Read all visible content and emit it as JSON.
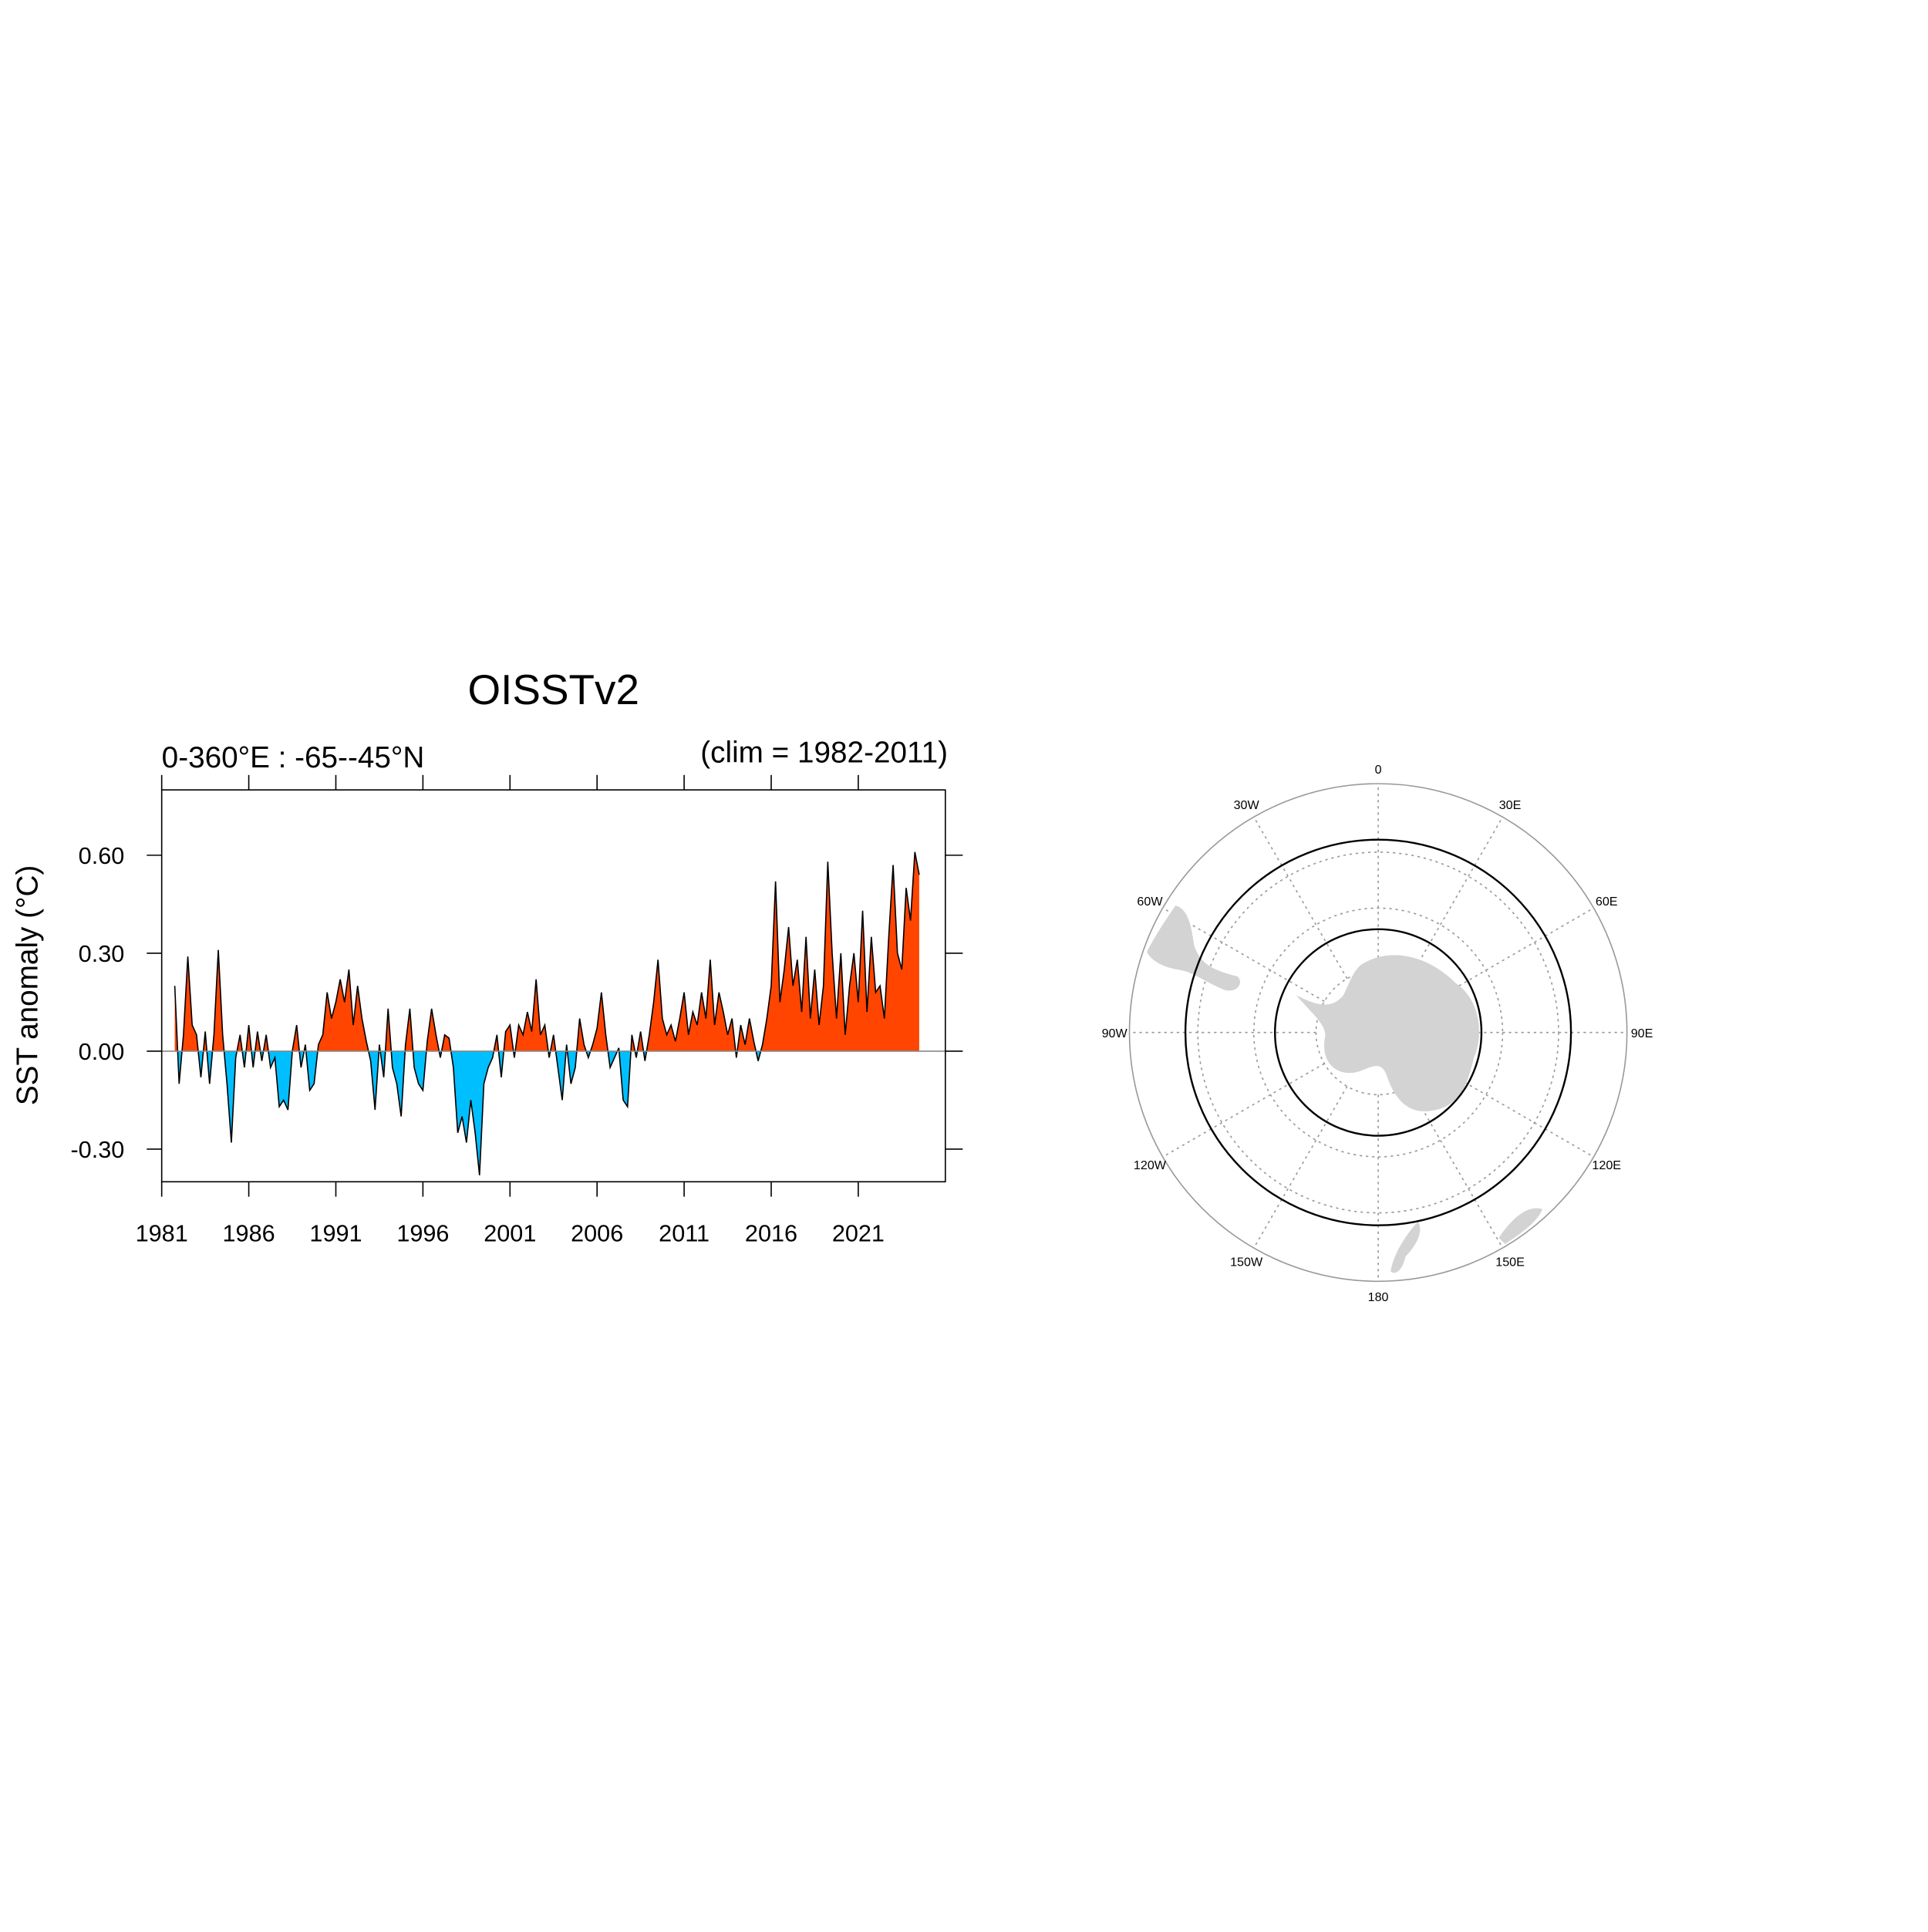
{
  "chart_data": {
    "type": "area",
    "title": "OISSTv2",
    "subtitle_left": "0-360°E : -65--45°N",
    "subtitle_right": "(clim = 1982-2011)",
    "y_label": "SST anomaly (°C)",
    "xlim": [
      1981,
      2026
    ],
    "xticks": [
      1981,
      1986,
      1991,
      1996,
      2001,
      2006,
      2011,
      2016,
      2021
    ],
    "ylim": [
      -0.4,
      0.8
    ],
    "yticks": [
      {
        "value": -0.3,
        "label": "-0.30"
      },
      {
        "value": 0,
        "label": "0.00"
      },
      {
        "value": 0.3,
        "label": "0.30"
      },
      {
        "value": 0.6,
        "label": "0.60"
      }
    ],
    "positive_color": "#ff4500",
    "negative_color": "#00bfff",
    "line_color": "#000000",
    "x": [
      1981.75,
      1982,
      1982.25,
      1982.5,
      1982.75,
      1983,
      1983.25,
      1983.5,
      1983.75,
      1984,
      1984.25,
      1984.5,
      1984.75,
      1985,
      1985.25,
      1985.5,
      1985.75,
      1986,
      1986.25,
      1986.5,
      1986.75,
      1987,
      1987.25,
      1987.5,
      1987.75,
      1988,
      1988.25,
      1988.5,
      1988.75,
      1989,
      1989.25,
      1989.5,
      1989.75,
      1990,
      1990.25,
      1990.5,
      1990.75,
      1991,
      1991.25,
      1991.5,
      1991.75,
      1992,
      1992.25,
      1992.5,
      1992.75,
      1993,
      1993.25,
      1993.5,
      1993.75,
      1994,
      1994.25,
      1994.5,
      1994.75,
      1995,
      1995.25,
      1995.5,
      1995.75,
      1996,
      1996.25,
      1996.5,
      1996.75,
      1997,
      1997.25,
      1997.5,
      1997.75,
      1998,
      1998.25,
      1998.5,
      1998.75,
      1999,
      1999.25,
      1999.5,
      1999.75,
      2000,
      2000.25,
      2000.5,
      2000.75,
      2001,
      2001.25,
      2001.5,
      2001.75,
      2002,
      2002.25,
      2002.5,
      2002.75,
      2003,
      2003.25,
      2003.5,
      2003.75,
      2004,
      2004.25,
      2004.5,
      2004.75,
      2005,
      2005.25,
      2005.5,
      2005.75,
      2006,
      2006.25,
      2006.5,
      2006.75,
      2007,
      2007.25,
      2007.5,
      2007.75,
      2008,
      2008.25,
      2008.5,
      2008.75,
      2009,
      2009.25,
      2009.5,
      2009.75,
      2010,
      2010.25,
      2010.5,
      2010.75,
      2011,
      2011.25,
      2011.5,
      2011.75,
      2012,
      2012.25,
      2012.5,
      2012.75,
      2013,
      2013.25,
      2013.5,
      2013.75,
      2014,
      2014.25,
      2014.5,
      2014.75,
      2015,
      2015.25,
      2015.5,
      2015.75,
      2016,
      2016.25,
      2016.5,
      2016.75,
      2017,
      2017.25,
      2017.5,
      2017.75,
      2018,
      2018.25,
      2018.5,
      2018.75,
      2019,
      2019.25,
      2019.5,
      2019.75,
      2020,
      2020.25,
      2020.5,
      2020.75,
      2021,
      2021.25,
      2021.5,
      2021.75,
      2022,
      2022.25,
      2022.5,
      2022.75,
      2023,
      2023.25,
      2023.5,
      2023.75,
      2024,
      2024.25,
      2024.5
    ],
    "values": [
      0.2,
      -0.1,
      0.05,
      0.29,
      0.08,
      0.05,
      -0.08,
      0.06,
      -0.1,
      0.05,
      0.31,
      0.05,
      -0.1,
      -0.28,
      -0.02,
      0.05,
      -0.05,
      0.08,
      -0.05,
      0.06,
      -0.03,
      0.05,
      -0.05,
      -0.02,
      -0.17,
      -0.15,
      -0.18,
      0,
      0.08,
      -0.05,
      0.02,
      -0.12,
      -0.1,
      0.02,
      0.05,
      0.18,
      0.1,
      0.15,
      0.22,
      0.15,
      0.25,
      0.08,
      0.2,
      0.1,
      0.03,
      -0.03,
      -0.18,
      0.02,
      -0.08,
      0.13,
      -0.05,
      -0.1,
      -0.2,
      0.02,
      0.13,
      -0.05,
      -0.1,
      -0.12,
      0.03,
      0.13,
      0.05,
      -0.02,
      0.05,
      0.04,
      -0.05,
      -0.25,
      -0.2,
      -0.28,
      -0.15,
      -0.25,
      -0.38,
      -0.1,
      -0.05,
      -0.02,
      0.05,
      -0.08,
      0.06,
      0.08,
      -0.02,
      0.08,
      0.05,
      0.12,
      0.06,
      0.22,
      0.05,
      0.08,
      -0.02,
      0.05,
      -0.05,
      -0.15,
      0.02,
      -0.1,
      -0.05,
      0.1,
      0.02,
      -0.02,
      0.02,
      0.07,
      0.18,
      0.05,
      -0.05,
      -0.02,
      0.01,
      -0.15,
      -0.17,
      0.05,
      -0.02,
      0.06,
      -0.03,
      0.05,
      0.15,
      0.28,
      0.1,
      0.05,
      0.08,
      0.03,
      0.1,
      0.18,
      0.05,
      0.12,
      0.08,
      0.18,
      0.1,
      0.28,
      0.08,
      0.18,
      0.12,
      0.05,
      0.1,
      -0.02,
      0.08,
      0.02,
      0.1,
      0.03,
      -0.03,
      0.02,
      0.1,
      0.2,
      0.52,
      0.15,
      0.25,
      0.38,
      0.2,
      0.28,
      0.12,
      0.35,
      0.1,
      0.25,
      0.08,
      0.2,
      0.58,
      0.3,
      0.1,
      0.3,
      0.05,
      0.2,
      0.3,
      0.15,
      0.43,
      0.12,
      0.35,
      0.18,
      0.2,
      0.1,
      0.35,
      0.57,
      0.3,
      0.25,
      0.5,
      0.4,
      0.61,
      0.54
    ]
  },
  "map": {
    "lon_labels": [
      "0",
      "30E",
      "60E",
      "90E",
      "120E",
      "150E",
      "180",
      "150W",
      "120W",
      "90W",
      "60W",
      "30W"
    ]
  }
}
